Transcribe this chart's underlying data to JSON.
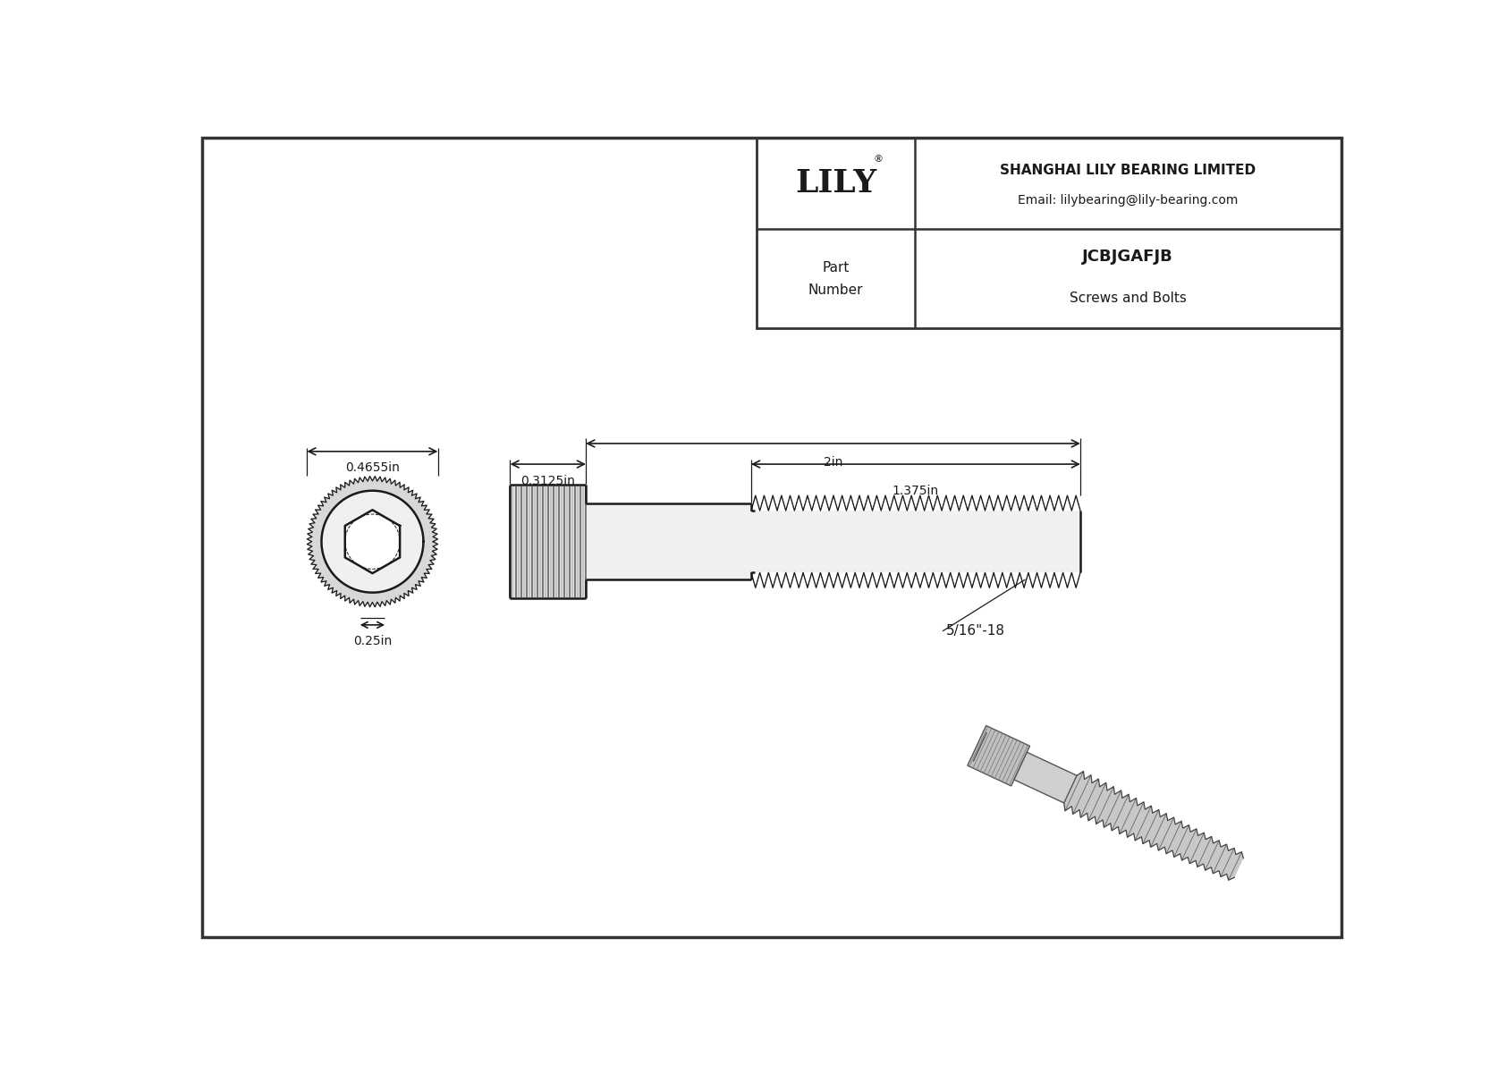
{
  "bg_color": "#ffffff",
  "line_color": "#1a1a1a",
  "border_color": "#555555",
  "title_company": "SHANGHAI LILY BEARING LIMITED",
  "title_email": "Email: lilybearing@lily-bearing.com",
  "part_number": "JCBJGAFJB",
  "part_category": "Screws and Bolts",
  "part_label": "Part\nNumber",
  "logo_text": "LILY",
  "logo_reg": "®",
  "dim_head_diameter": "0.4655in",
  "dim_thread_diameter": "0.3125in",
  "dim_total_length": "2in",
  "dim_thread_length": "1.375in",
  "dim_thread_spec": "5/16\"-18",
  "dim_head_height": "0.25in",
  "font_size_dim": 10,
  "font_size_title": 11,
  "font_size_logo": 26,
  "font_size_part": 13
}
